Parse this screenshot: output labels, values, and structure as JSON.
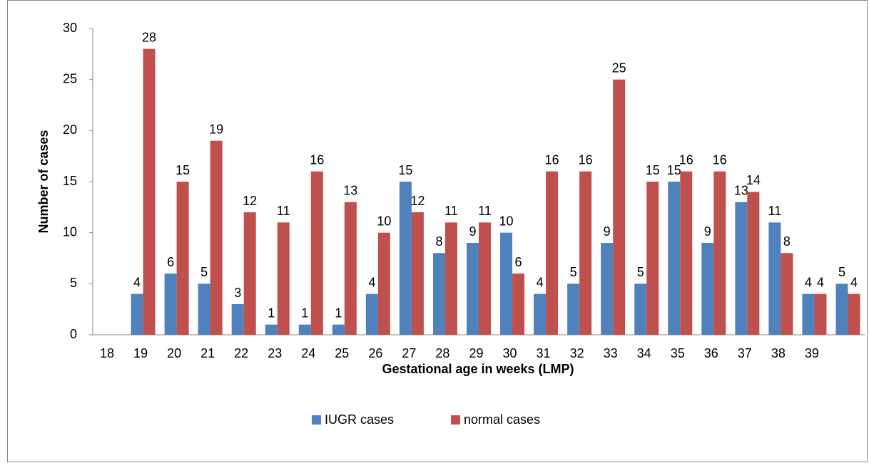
{
  "chart_data": {
    "type": "bar",
    "x_label": "Gestational age in weeks (LMP)",
    "y_label": "Number of cases",
    "categories": [
      "18",
      "19",
      "20",
      "21",
      "22",
      "23",
      "24",
      "25",
      "26",
      "27",
      "28",
      "29",
      "30",
      "31",
      "32",
      "33",
      "34",
      "35",
      "36",
      "37",
      "38",
      "39",
      null
    ],
    "series": [
      {
        "name": "IUGR cases",
        "color": "#4f81bd",
        "values": [
          null,
          4,
          6,
          5,
          3,
          1,
          1,
          1,
          4,
          15,
          8,
          9,
          10,
          4,
          5,
          9,
          5,
          15,
          9,
          13,
          11,
          4,
          5
        ]
      },
      {
        "name": "normal cases",
        "color": "#c0504d",
        "values": [
          null,
          28,
          15,
          19,
          12,
          11,
          16,
          13,
          10,
          12,
          11,
          11,
          6,
          16,
          16,
          25,
          15,
          16,
          16,
          14,
          8,
          4,
          4
        ]
      }
    ],
    "ylim": [
      0,
      30
    ],
    "yticks": [
      0,
      5,
      10,
      15,
      20,
      25,
      30
    ],
    "grid": false,
    "legend": "bottom"
  }
}
